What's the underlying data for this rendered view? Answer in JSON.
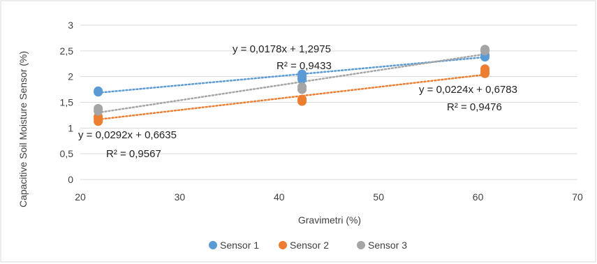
{
  "chart_data": {
    "type": "scatter",
    "title": "",
    "xlabel": "Gravimetri (%)",
    "ylabel": "Capacitive Soil Moisture Sensor (%)",
    "xlim": [
      20,
      70
    ],
    "ylim": [
      0,
      3
    ],
    "x_ticks": [
      "20",
      "30",
      "40",
      "50",
      "60",
      "70"
    ],
    "y_ticks": [
      "0",
      "0,5",
      "1",
      "1,5",
      "2",
      "2,5",
      "3"
    ],
    "grid": "horizontal",
    "legend_position": "bottom",
    "series": [
      {
        "name": "Sensor 1",
        "color": "#5B9BD5",
        "points": [
          [
            21.8,
            1.72
          ],
          [
            21.8,
            1.7
          ],
          [
            42.3,
            2.05
          ],
          [
            42.3,
            2.0
          ],
          [
            42.3,
            1.95
          ],
          [
            60.7,
            2.42
          ],
          [
            60.7,
            2.38
          ]
        ],
        "trendline": {
          "slope": 0.0178,
          "intercept": 1.2975
        }
      },
      {
        "name": "Sensor 2",
        "color": "#ED7D31",
        "points": [
          [
            21.8,
            1.22
          ],
          [
            21.8,
            1.18
          ],
          [
            21.8,
            1.13
          ],
          [
            42.3,
            1.56
          ],
          [
            42.3,
            1.52
          ],
          [
            60.7,
            2.15
          ],
          [
            60.7,
            2.1
          ],
          [
            60.7,
            2.06
          ]
        ],
        "trendline": {
          "slope": 0.0224,
          "intercept": 0.6783
        }
      },
      {
        "name": "Sensor 3",
        "color": "#A5A5A5",
        "points": [
          [
            21.8,
            1.38
          ],
          [
            21.8,
            1.33
          ],
          [
            42.3,
            1.8
          ],
          [
            42.3,
            1.75
          ],
          [
            60.7,
            2.53
          ],
          [
            60.7,
            2.5
          ]
        ],
        "trendline": {
          "slope": 0.0292,
          "intercept": 0.6635
        }
      }
    ],
    "annotations": [
      {
        "id": "s1-eq",
        "text": "y = 0,0178x + 1,2975"
      },
      {
        "id": "s1-r2",
        "text": "R² = 0,9433"
      },
      {
        "id": "s2-eq",
        "text": "y = 0,0224x + 0,6783"
      },
      {
        "id": "s2-r2",
        "text": "R² = 0,9476"
      },
      {
        "id": "s3-eq",
        "text": "y = 0,0292x + 0,6635"
      },
      {
        "id": "s3-r2",
        "text": "R² = 0,9567"
      }
    ]
  }
}
